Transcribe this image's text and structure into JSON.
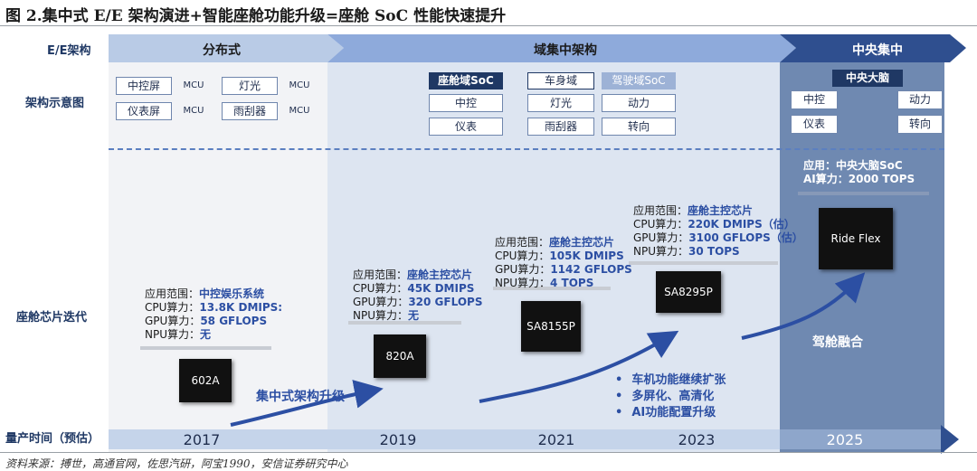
{
  "title": "图 2.集中式 E/E 架构演进+智能座舱功能升级=座舱 SoC 性能快速提升",
  "source": "资料来源：搏世，高通官网，佐思汽研，阿宝1990，安信证券研究中心",
  "row_labels": {
    "ee": "E/E架构",
    "diagram": "架构示意图",
    "chip": "座舱芯片迭代",
    "time": "量产时间（预估）"
  },
  "phases": {
    "distributed": "分布式",
    "domain": "域集中架构",
    "central": "中央集中"
  },
  "distributed_diagram": {
    "rows": [
      {
        "ecu_a": "中控屏",
        "mcu_a": "MCU",
        "ecu_b": "灯光",
        "mcu_b": "MCU"
      },
      {
        "ecu_a": "仪表屏",
        "mcu_a": "MCU",
        "ecu_b": "雨刮器",
        "mcu_b": "MCU"
      }
    ]
  },
  "domain_diagram": {
    "cockpit": {
      "header": "座舱域SoC",
      "items": [
        "中控",
        "仪表"
      ]
    },
    "body": {
      "header": "车身域",
      "items": [
        "灯光",
        "雨刮器"
      ]
    },
    "adas": {
      "header": "驾驶域SoC",
      "items": [
        "动力",
        "转向"
      ]
    }
  },
  "central_diagram": {
    "brain": "中央大脑",
    "left": [
      "中控",
      "仪表"
    ],
    "right": [
      "动力",
      "转向"
    ]
  },
  "chips": [
    {
      "name": "602A",
      "specs": [
        {
          "label": "应用范围：",
          "value": "中控娱乐系统"
        },
        {
          "label": "CPU算力：",
          "value": "13.8K DMIPS:"
        },
        {
          "label": "GPU算力：",
          "value": "58 GFLOPS"
        },
        {
          "label": "NPU算力：",
          "value": "无"
        }
      ]
    },
    {
      "name": "820A",
      "specs": [
        {
          "label": "应用范围：",
          "value": "座舱主控芯片"
        },
        {
          "label": "CPU算力：",
          "value": "45K DMIPS"
        },
        {
          "label": "GPU算力：",
          "value": "320 GFLOPS"
        },
        {
          "label": "NPU算力：",
          "value": "无"
        }
      ]
    },
    {
      "name": "SA8155P",
      "specs": [
        {
          "label": "应用范围：",
          "value": "座舱主控芯片"
        },
        {
          "label": "CPU算力：",
          "value": "105K DMIPS"
        },
        {
          "label": "GPU算力：",
          "value": "1142 GFLOPS"
        },
        {
          "label": "NPU算力：",
          "value": "4 TOPS"
        }
      ]
    },
    {
      "name": "SA8295P",
      "specs": [
        {
          "label": "应用范围：",
          "value": "座舱主控芯片"
        },
        {
          "label": "CPU算力：",
          "value": "220K DMIPS（估）"
        },
        {
          "label": "GPU算力：",
          "value": "3100 GFLOPS（估）"
        },
        {
          "label": "NPU算力：",
          "value": "30 TOPS"
        }
      ]
    },
    {
      "name": "Ride Flex",
      "specs": [
        {
          "label": "应用：",
          "value": "中央大脑SoC"
        },
        {
          "label": "AI算力：",
          "value": "2000 TOPS"
        }
      ]
    }
  ],
  "annotations": {
    "centralized_upgrade": "集中式架构升级",
    "fusion": "驾舱融合",
    "bullets": [
      "车机功能继续扩张",
      "多屏化、高清化",
      "AI功能配置升级"
    ]
  },
  "years": [
    "2017",
    "2019",
    "2021",
    "2023",
    "2025"
  ],
  "colors": {
    "navy": "#1f3864",
    "accent_blue": "#2c4fa3",
    "chevron_light": "#b9cbe6",
    "chevron_mid": "#8eaadb",
    "chevron_dark": "#2f4f8f",
    "panel_central": "#6f89b1"
  }
}
